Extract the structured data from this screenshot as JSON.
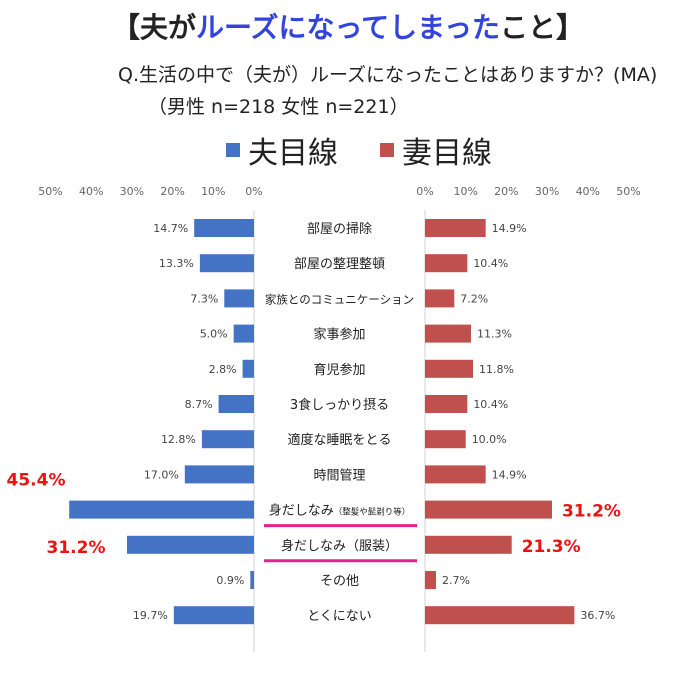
{
  "header": {
    "title_open": "【夫が",
    "title_highlight": "ルーズになってしまった",
    "title_close": "こと】",
    "question": "Q.生活の中で（夫が）ルーズになったことはありますか？(MA)",
    "sample": "（男性 n=218   女性 n=221）"
  },
  "colors": {
    "husband": "#4472c4",
    "wife": "#c0504d",
    "highlight": "#ee1111",
    "underline": "#e8208c",
    "title_accent": "#3344dd"
  },
  "chart_data": {
    "type": "bar",
    "orientation": "horizontal-butterfly",
    "categories": [
      "部屋の掃除",
      "部屋の整理整頓",
      "家族とのコミュニケーション",
      "家事参加",
      "育児参加",
      "3食しっかり摂る",
      "適度な睡眠をとる",
      "時間管理",
      "身だしなみ（整髪や髭剃り等）",
      "身だしなみ（服装）",
      "その他",
      "とくにない"
    ],
    "category_display": [
      {
        "main": "部屋の掃除",
        "sub": ""
      },
      {
        "main": "部屋の整理整頓",
        "sub": ""
      },
      {
        "main": "家族とのコミュニケーション",
        "sub": ""
      },
      {
        "main": "家事参加",
        "sub": ""
      },
      {
        "main": "育児参加",
        "sub": ""
      },
      {
        "main": "3食しっかり摂る",
        "sub": ""
      },
      {
        "main": "適度な睡眠をとる",
        "sub": ""
      },
      {
        "main": "時間管理",
        "sub": ""
      },
      {
        "main": "身だしなみ",
        "sub": "（整髪や髭剃り等）"
      },
      {
        "main": "身だしなみ（服装）",
        "sub": ""
      },
      {
        "main": "その他",
        "sub": ""
      },
      {
        "main": "とくにない",
        "sub": ""
      }
    ],
    "series": [
      {
        "name": "夫目線",
        "values": [
          14.7,
          13.3,
          7.3,
          5.0,
          2.8,
          8.7,
          12.8,
          17.0,
          45.4,
          31.2,
          0.9,
          19.7
        ],
        "labels": [
          "14.7%",
          "13.3%",
          "7.3%",
          "5.0%",
          "2.8%",
          "8.7%",
          "12.8%",
          "17.0%",
          "45.4%",
          "31.2%",
          "0.9%",
          "19.7%"
        ]
      },
      {
        "name": "妻目線",
        "values": [
          14.9,
          10.4,
          7.2,
          11.3,
          11.8,
          10.4,
          10.0,
          14.9,
          31.2,
          21.3,
          2.7,
          36.7
        ],
        "labels": [
          "14.9%",
          "10.4%",
          "7.2%",
          "11.3%",
          "11.8%",
          "10.4%",
          "10.0%",
          "14.9%",
          "31.2%",
          "21.3%",
          "2.7%",
          "36.7%"
        ]
      }
    ],
    "emphasized_rows": [
      8,
      9
    ],
    "left_ticks": [
      "50%",
      "40%",
      "30%",
      "20%",
      "10%",
      "0%"
    ],
    "right_ticks": [
      "0%",
      "10%",
      "20%",
      "30%",
      "40%",
      "50%"
    ],
    "xlim": [
      0,
      50
    ],
    "legend_position": "top"
  }
}
